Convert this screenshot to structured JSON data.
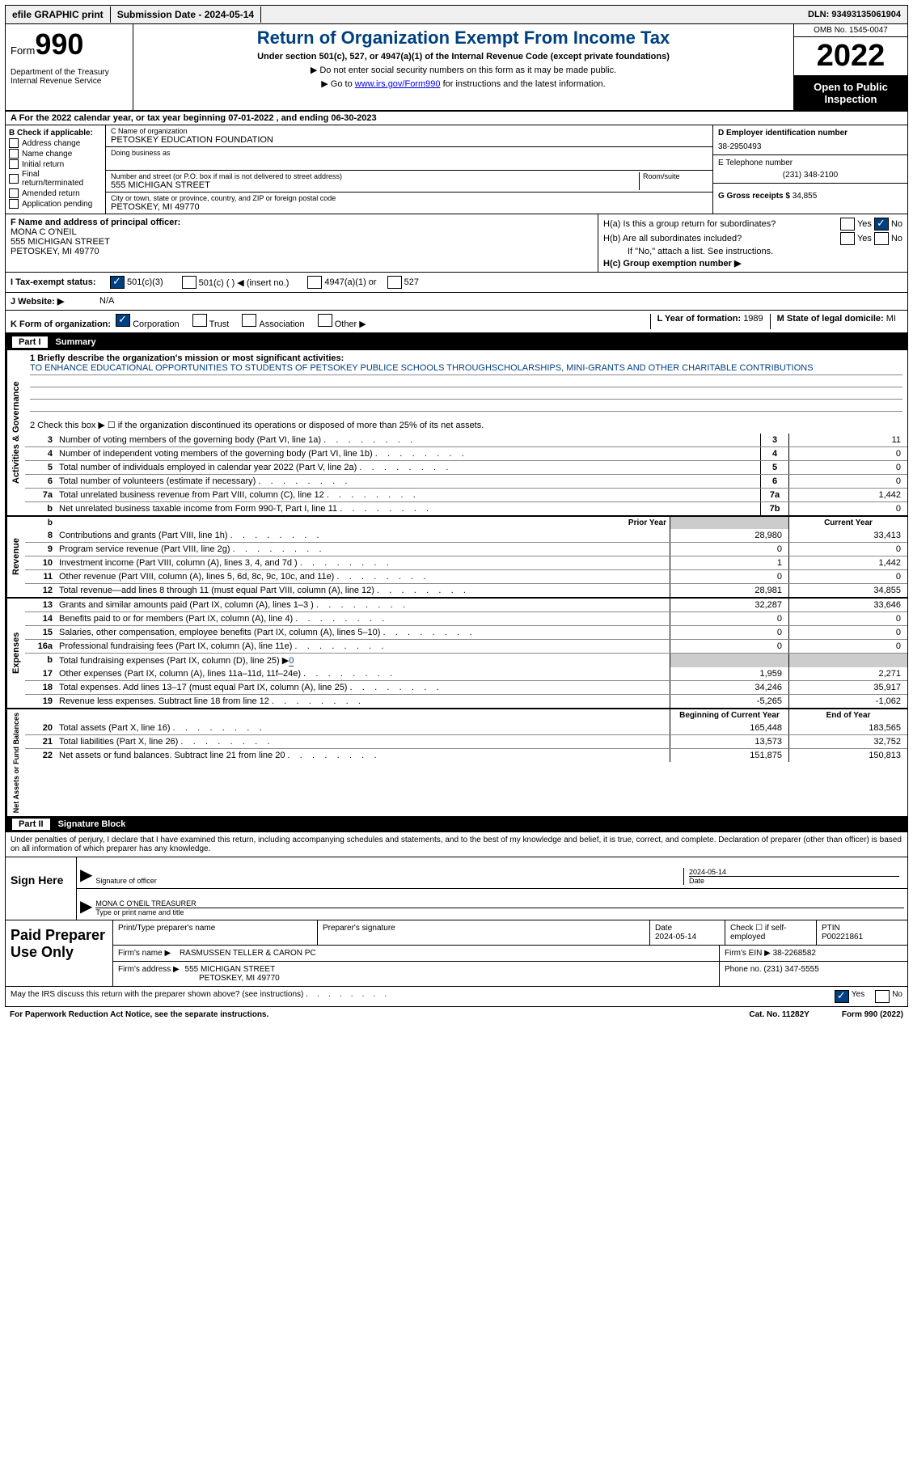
{
  "topbar": {
    "efile": "efile GRAPHIC print",
    "submission": "Submission Date - 2024-05-14",
    "dln": "DLN: 93493135061904"
  },
  "header": {
    "form_label": "Form",
    "form_number": "990",
    "dept": "Department of the Treasury Internal Revenue Service",
    "title": "Return of Organization Exempt From Income Tax",
    "subtitle": "Under section 501(c), 527, or 4947(a)(1) of the Internal Revenue Code (except private foundations)",
    "nossn": "▶ Do not enter social security numbers on this form as it may be made public.",
    "goto_pre": "▶ Go to ",
    "goto_link": "www.irs.gov/Form990",
    "goto_post": " for instructions and the latest information.",
    "omb": "OMB No. 1545-0047",
    "year": "2022",
    "open": "Open to Public Inspection"
  },
  "sectionA": "A For the 2022 calendar year, or tax year beginning 07-01-2022    , and ending 06-30-2023",
  "checkB": {
    "label": "B Check if applicable:",
    "items": [
      "Address change",
      "Name change",
      "Initial return",
      "Final return/terminated",
      "Amended return",
      "Application pending"
    ]
  },
  "colC": {
    "name_label": "C Name of organization",
    "name": "PETOSKEY EDUCATION FOUNDATION",
    "dba": "Doing business as",
    "street_label": "Number and street (or P.O. box if mail is not delivered to street address)",
    "room_label": "Room/suite",
    "street": "555 MICHIGAN STREET",
    "city_label": "City or town, state or province, country, and ZIP or foreign postal code",
    "city": "PETOSKEY, MI  49770"
  },
  "colD": {
    "ein_label": "D Employer identification number",
    "ein": "38-2950493",
    "phone_label": "E Telephone number",
    "phone": "(231) 348-2100",
    "gross_label": "G Gross receipts $",
    "gross": "34,855"
  },
  "rowF": {
    "label": "F  Name and address of principal officer:",
    "name": "MONA C O'NEIL",
    "addr1": "555 MICHIGAN STREET",
    "addr2": "PETOSKEY, MI  49770"
  },
  "rowH": {
    "ha": "H(a)  Is this a group return for subordinates?",
    "hb": "H(b)  Are all subordinates included?",
    "hnote": "If \"No,\" attach a list. See instructions.",
    "hc_label": "H(c)  Group exemption number ▶",
    "yes": "Yes",
    "no": "No"
  },
  "rowI": {
    "label": "I    Tax-exempt status:",
    "c3": "501(c)(3)",
    "c_other": "501(c) (   ) ◀ (insert no.)",
    "a1": "4947(a)(1) or",
    "s527": "527"
  },
  "rowJ": {
    "label": "J    Website: ▶",
    "value": "N/A"
  },
  "rowK": {
    "label": "K Form of organization:",
    "corp": "Corporation",
    "trust": "Trust",
    "assoc": "Association",
    "other": "Other ▶",
    "lyear_label": "L Year of formation:",
    "lyear": "1989",
    "mstate_label": "M State of legal domicile:",
    "mstate": "MI"
  },
  "part1": {
    "part": "Part I",
    "title": "Summary"
  },
  "mission": {
    "line1_label": "1   Briefly describe the organization's mission or most significant activities:",
    "text": "TO ENHANCE EDUCATIONAL OPPORTUNITIES TO STUDENTS OF PETSOKEY PUBLICE SCHOOLS THROUGHSCHOLARSHIPS, MINI-GRANTS AND OTHER CHARITABLE CONTRIBUTIONS",
    "line2": "2   Check this box ▶ ☐ if the organization discontinued its operations or disposed of more than 25% of its net assets."
  },
  "activities_label": "Activities & Governance",
  "activity_rows": [
    {
      "n": "3",
      "d": "Number of voting members of the governing body (Part VI, line 1a)",
      "box": "3",
      "v": "11"
    },
    {
      "n": "4",
      "d": "Number of independent voting members of the governing body (Part VI, line 1b)",
      "box": "4",
      "v": "0"
    },
    {
      "n": "5",
      "d": "Total number of individuals employed in calendar year 2022 (Part V, line 2a)",
      "box": "5",
      "v": "0"
    },
    {
      "n": "6",
      "d": "Total number of volunteers (estimate if necessary)",
      "box": "6",
      "v": "0"
    },
    {
      "n": "7a",
      "d": "Total unrelated business revenue from Part VIII, column (C), line 12",
      "box": "7a",
      "v": "1,442"
    },
    {
      "n": "b",
      "d": "Net unrelated business taxable income from Form 990-T, Part I, line 11",
      "box": "7b",
      "v": "0"
    }
  ],
  "prior_label": "Prior Year",
  "current_label": "Current Year",
  "revenue_label": "Revenue",
  "revenue_rows": [
    {
      "n": "8",
      "d": "Contributions and grants (Part VIII, line 1h)",
      "p": "28,980",
      "c": "33,413"
    },
    {
      "n": "9",
      "d": "Program service revenue (Part VIII, line 2g)",
      "p": "0",
      "c": "0"
    },
    {
      "n": "10",
      "d": "Investment income (Part VIII, column (A), lines 3, 4, and 7d )",
      "p": "1",
      "c": "1,442"
    },
    {
      "n": "11",
      "d": "Other revenue (Part VIII, column (A), lines 5, 6d, 8c, 9c, 10c, and 11e)",
      "p": "0",
      "c": "0"
    },
    {
      "n": "12",
      "d": "Total revenue—add lines 8 through 11 (must equal Part VIII, column (A), line 12)",
      "p": "28,981",
      "c": "34,855"
    }
  ],
  "expenses_label": "Expenses",
  "expense_rows": [
    {
      "n": "13",
      "d": "Grants and similar amounts paid (Part IX, column (A), lines 1–3 )",
      "p": "32,287",
      "c": "33,646"
    },
    {
      "n": "14",
      "d": "Benefits paid to or for members (Part IX, column (A), line 4)",
      "p": "0",
      "c": "0"
    },
    {
      "n": "15",
      "d": "Salaries, other compensation, employee benefits (Part IX, column (A), lines 5–10)",
      "p": "0",
      "c": "0"
    },
    {
      "n": "16a",
      "d": "Professional fundraising fees (Part IX, column (A), line 11e)",
      "p": "0",
      "c": "0"
    }
  ],
  "line16b": {
    "n": "b",
    "d": "Total fundraising expenses (Part IX, column (D), line 25) ▶",
    "v": "0"
  },
  "expense_rows2": [
    {
      "n": "17",
      "d": "Other expenses (Part IX, column (A), lines 11a–11d, 11f–24e)",
      "p": "1,959",
      "c": "2,271"
    },
    {
      "n": "18",
      "d": "Total expenses. Add lines 13–17 (must equal Part IX, column (A), line 25)",
      "p": "34,246",
      "c": "35,917"
    },
    {
      "n": "19",
      "d": "Revenue less expenses. Subtract line 18 from line 12",
      "p": "-5,265",
      "c": "-1,062"
    }
  ],
  "net_label": "Net Assets or Fund Balances",
  "begin_label": "Beginning of Current Year",
  "end_label": "End of Year",
  "net_rows": [
    {
      "n": "20",
      "d": "Total assets (Part X, line 16)",
      "p": "165,448",
      "c": "183,565"
    },
    {
      "n": "21",
      "d": "Total liabilities (Part X, line 26)",
      "p": "13,573",
      "c": "32,752"
    },
    {
      "n": "22",
      "d": "Net assets or fund balances. Subtract line 21 from line 20",
      "p": "151,875",
      "c": "150,813"
    }
  ],
  "part2": {
    "part": "Part II",
    "title": "Signature Block"
  },
  "penalty": "Under penalties of perjury, I declare that I have examined this return, including accompanying schedules and statements, and to the best of my knowledge and belief, it is true, correct, and complete. Declaration of preparer (other than officer) is based on all information of which preparer has any knowledge.",
  "sign": {
    "here": "Sign Here",
    "sig_officer": "Signature of officer",
    "date": "Date",
    "date_val": "2024-05-14",
    "name_title": "MONA C O'NEIL TREASURER",
    "type_print": "Type or print name and title"
  },
  "paid": {
    "label": "Paid Preparer Use Only",
    "print_name": "Print/Type preparer's name",
    "prep_sig": "Preparer's signature",
    "date": "Date",
    "date_val": "2024-05-14",
    "check_if": "Check ☐ if self-employed",
    "ptin_label": "PTIN",
    "ptin": "P00221861",
    "firm_name_label": "Firm's name      ▶",
    "firm_name": "RASMUSSEN TELLER & CARON PC",
    "firm_ein_label": "Firm's EIN ▶",
    "firm_ein": "38-2268582",
    "firm_addr_label": "Firm's address ▶",
    "firm_addr1": "555 MICHIGAN STREET",
    "firm_addr2": "PETOSKEY, MI  49770",
    "phone_label": "Phone no.",
    "phone": "(231) 347-5555"
  },
  "footer": {
    "discuss": "May the IRS discuss this return with the preparer shown above? (see instructions)",
    "yes": "Yes",
    "no": "No",
    "pra": "For Paperwork Reduction Act Notice, see the separate instructions.",
    "cat": "Cat. No. 11282Y",
    "form": "Form 990 (2022)"
  }
}
